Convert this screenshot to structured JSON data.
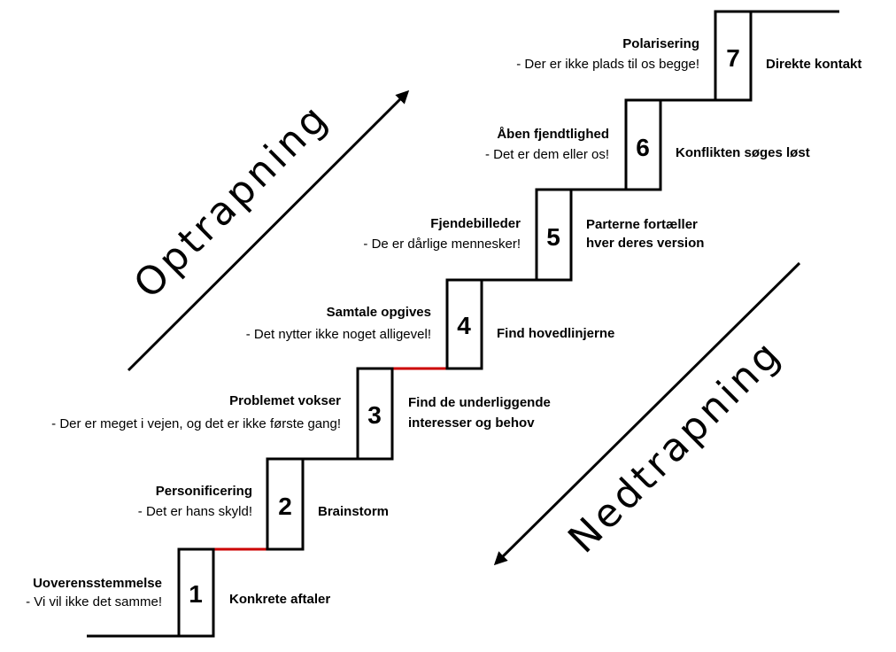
{
  "labels": {
    "escalation": "Optrapning",
    "deescalation": "Nedtrapning"
  },
  "colors": {
    "line": "#000000",
    "highlight": "#cc0000"
  },
  "steps": [
    {
      "number": "1",
      "title": "Uoverensstemmelse",
      "desc": "- Vi vil ikke det samme!",
      "action": "Konkrete aftaler"
    },
    {
      "number": "2",
      "title": "Personificering",
      "desc": "- Det er hans skyld!",
      "action": "Brainstorm"
    },
    {
      "number": "3",
      "title": "Problemet vokser",
      "desc": "- Der er meget i vejen, og det er ikke første gang!",
      "action_line1": "Find de underliggende",
      "action_line2": "interesser og behov"
    },
    {
      "number": "4",
      "title": "Samtale opgives",
      "desc": "- Det nytter ikke noget alligevel!",
      "action": "Find hovedlinjerne"
    },
    {
      "number": "5",
      "title": "Fjendebilleder",
      "desc": "- De er dårlige mennesker!",
      "action_line1": "Parterne fortæller",
      "action_line2": "hver deres version"
    },
    {
      "number": "6",
      "title": "Åben fjendtlighed",
      "desc": "- Det er dem eller os!",
      "action": "Konflikten søges løst"
    },
    {
      "number": "7",
      "title": "Polarisering",
      "desc": "- Der er ikke plads til os begge!",
      "action": "Direkte kontakt"
    }
  ]
}
